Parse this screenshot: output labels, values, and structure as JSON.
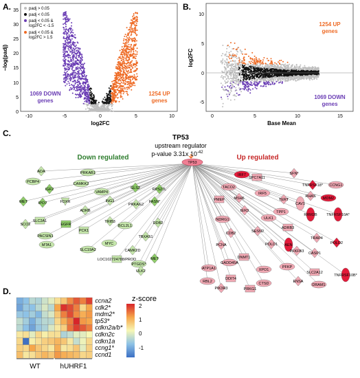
{
  "colors": {
    "gray": "#bfbfbf",
    "black": "#111111",
    "down": "#6a3db4",
    "up": "#ee6a24",
    "node_up": "#f1a9b4",
    "node_up_strong": "#e31b3a",
    "node_down": "#8fcc6a",
    "node_down_light": "#c5e6ab",
    "tp53": "#f07f94",
    "down_title": "#2e7d2e",
    "up_title": "#c62828"
  },
  "panelA": {
    "letter": "A.",
    "xlabel": "log2FC",
    "ylabel": "−log(padj)",
    "x_ticks": [
      "-10",
      "-5",
      "0",
      "5",
      "10"
    ],
    "y_ticks": [
      "0",
      "5",
      "10",
      "15",
      "20",
      "25",
      "30",
      "35"
    ],
    "legend": [
      "padj > 0.05",
      "padj < 0.05",
      "padj < 0.05 &",
      "log2FC < -1.5",
      "padj < 0.05 &",
      "log2FC > 1.5"
    ],
    "down_label_1": "1069 DOWN",
    "down_label_2": "genes",
    "up_label_1": "1254 UP",
    "up_label_2": "genes"
  },
  "panelB": {
    "letter": "B.",
    "xlabel": "Base Mean",
    "ylabel": "log2FC",
    "x_ticks": [
      "0",
      "5",
      "10",
      "15"
    ],
    "y_ticks": [
      "-5",
      "0",
      "5",
      "10"
    ],
    "up_label_1": "1254 UP",
    "up_label_2": "genes",
    "down_label_1": "1069 DOWN",
    "down_label_2": "genes"
  },
  "panelC": {
    "letter": "C.",
    "title": "TP53",
    "subtitle": "upstream regulator",
    "pvalue_prefix": "p-value 3.31x 10",
    "pvalue_exp": "-42",
    "down_title": "Down regulated",
    "up_title": "Up regulated",
    "center_node": "TP53",
    "down_genes": [
      "ADA",
      "PRKAB1",
      "PCBP4",
      "CAMKK2",
      "VAMP4",
      "GLS2",
      "RPS27L",
      "IGF2",
      "MET",
      "IPO7",
      "FDXR",
      "ADRB",
      "ING1",
      "PRKAG2",
      "FASN*",
      "SCO2",
      "SLC2A1",
      "EGFR",
      "TRIB3",
      "DDB2",
      "PACSIN1",
      "PCK1",
      "BCL2L1",
      "TBXAS1",
      "MTA1",
      "SLC19A2",
      "MYC",
      "CAMK2D",
      "LOC102724788/PROD",
      "PTGDS*",
      "MET",
      "ULK2"
    ],
    "up_genes": [
      "IRF7",
      "SPC7A11",
      "SFN*",
      "TNFRSF18*",
      "RHAS",
      "CCNG1",
      "MDM2",
      "TACO2",
      "IRF5",
      "MSH6",
      "CAV1",
      "TNFRSF10A*",
      "RRM2B",
      "PMEP",
      "ULK1",
      "TPP1",
      "ADRB3",
      "TRAP4",
      "AEN",
      "POLD2",
      "IER3",
      "NDRG1",
      "CDB2",
      "PCNA",
      "POLD1",
      "PFKFB3",
      "CASP1",
      "ATP1A1",
      "DNMT1",
      "SESN2",
      "TERT",
      "TNFRSF10B*",
      "GADD45A",
      "XPO1",
      "PFKP",
      "SLC2A12",
      "ENSA",
      "DRAM1",
      "RBL2",
      "DDIT4",
      "CTSD",
      "PIK3R3",
      "PRKG1"
    ]
  },
  "panelD": {
    "letter": "D.",
    "colorbar_title": "z-score",
    "colorbar_ticks": [
      "2",
      "1",
      "0",
      "-1"
    ],
    "genes": [
      "ccna2",
      "cdk2*",
      "mdm2*",
      "tp53*",
      "cdkn2a/b*",
      "cdkn2c",
      "cdkn1a",
      "ccng1*",
      "ccnd1"
    ],
    "groups": [
      "WT",
      "hUHRF1"
    ],
    "heatmap": [
      [
        -1.2,
        -1.0,
        -0.6,
        -0.7,
        -0.4,
        -0.2,
        0.3,
        0.6,
        1.2,
        1.6,
        1.3,
        1.8
      ],
      [
        -1.3,
        -0.9,
        -1.0,
        -0.6,
        -0.3,
        -0.6,
        1.0,
        1.9,
        1.7,
        1.3,
        0.4,
        1.0
      ],
      [
        -0.9,
        -1.0,
        -0.8,
        -1.1,
        -0.5,
        -0.3,
        0.6,
        1.3,
        1.7,
        1.2,
        0.9,
        1.1
      ],
      [
        -0.5,
        -0.8,
        -1.2,
        -0.8,
        -0.6,
        -0.6,
        0.4,
        0.9,
        1.3,
        2.0,
        1.1,
        1.0
      ],
      [
        -0.6,
        -1.0,
        -1.3,
        -0.9,
        -0.7,
        -0.3,
        0.2,
        0.5,
        1.4,
        1.8,
        1.6,
        1.3
      ],
      [
        0.2,
        0.3,
        -0.2,
        0.4,
        0.1,
        0.3,
        0.3,
        -0.7,
        -0.5,
        -0.2,
        -0.2,
        0.0
      ],
      [
        0.4,
        -1.8,
        0.1,
        0.3,
        0.5,
        0.6,
        0.8,
        0.6,
        0.2,
        -0.5,
        -0.1,
        0.4
      ],
      [
        0.5,
        0.4,
        1.0,
        0.6,
        0.4,
        0.2,
        0.9,
        0.2,
        0.3,
        0.6,
        -0.2,
        0.5
      ],
      [
        0.7,
        0.2,
        0.3,
        0.6,
        0.8,
        0.6,
        1.1,
        0.9,
        0.8,
        0.7,
        0.4,
        0.5
      ]
    ]
  }
}
